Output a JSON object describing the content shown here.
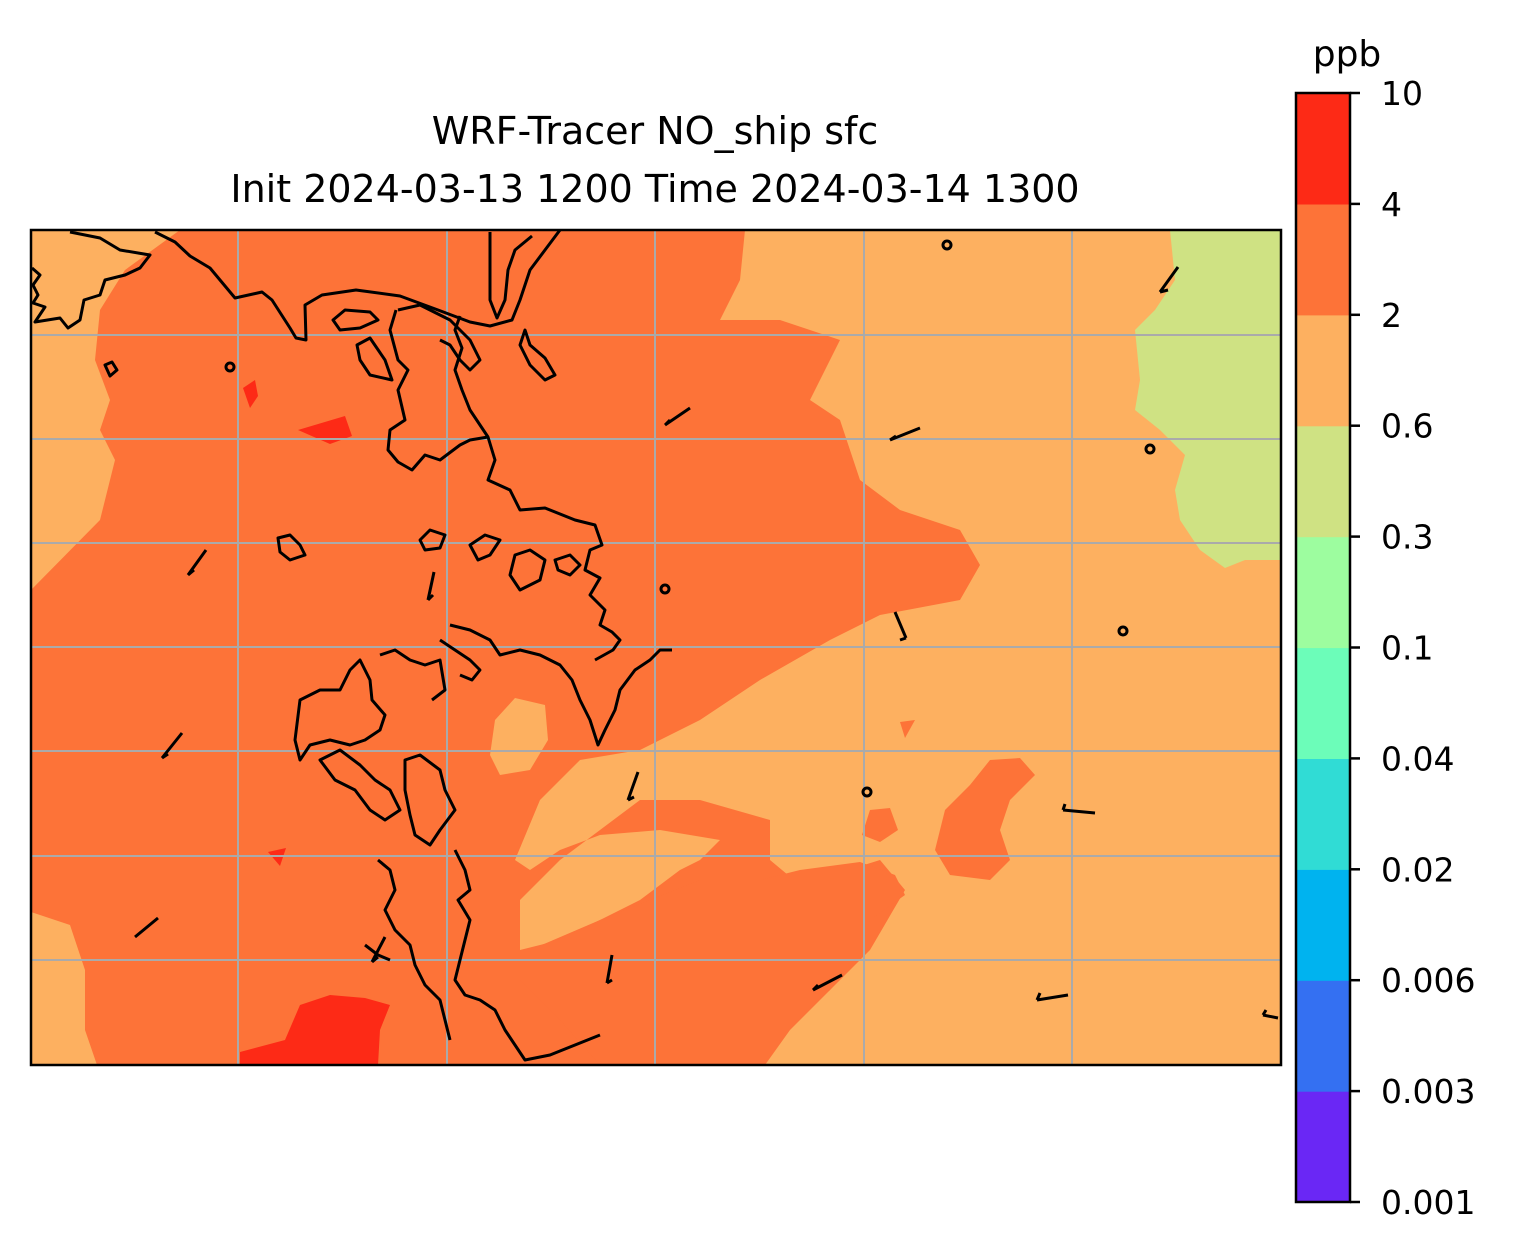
{
  "title": {
    "line1": "WRF-Tracer NO_ship sfc",
    "line2": "Init 2024-03-13 1200 Time 2024-03-14 1300"
  },
  "colorbar": {
    "unit": "ppb",
    "levels": [
      "0.001",
      "0.003",
      "0.006",
      "0.02",
      "0.04",
      "0.1",
      "0.3",
      "0.6",
      "2",
      "4",
      "10"
    ],
    "colors": [
      "#6a27f5",
      "#3470f2",
      "#00b3ef",
      "#30dcd5",
      "#6cfdb9",
      "#9dfd9f",
      "#cfe283",
      "#fdb060",
      "#fd7338",
      "#fd2a16"
    ]
  },
  "map": {
    "background_level_color": "#fd7338",
    "gridlines": "on",
    "grid_color": "#aaaaaa",
    "coastline_color": "#000000"
  }
}
